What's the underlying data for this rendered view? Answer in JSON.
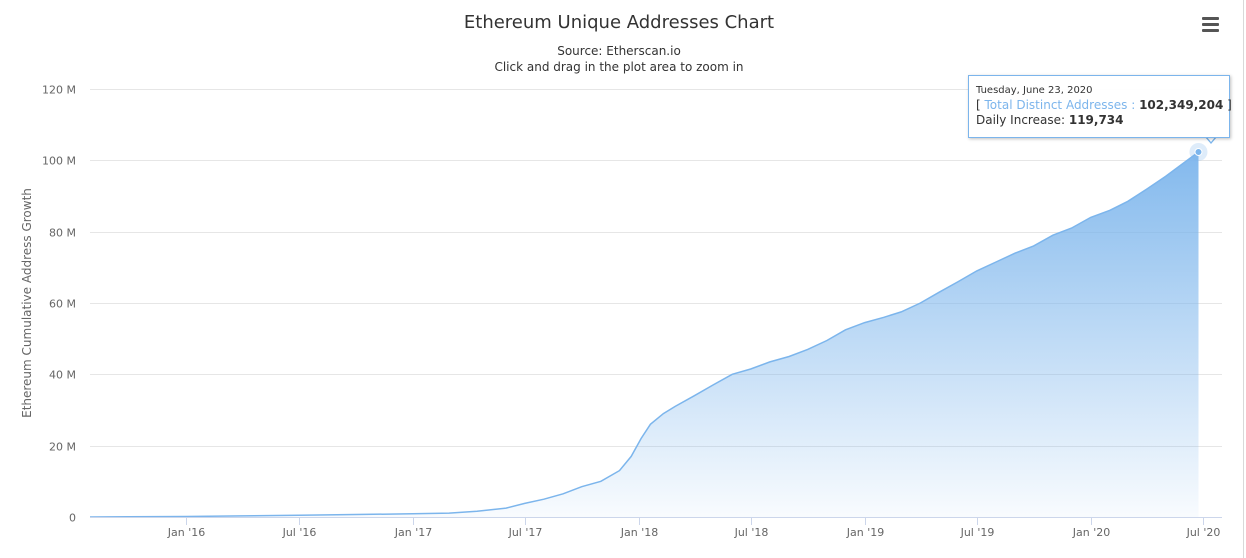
{
  "chart_data": {
    "type": "area",
    "title": "Ethereum Unique Addresses Chart",
    "subtitle": [
      "Source: Etherscan.io",
      "Click and drag in the plot area to zoom in"
    ],
    "xlabel": "",
    "ylabel": "Ethereum Cumulative Address Growth",
    "ylim": [
      0,
      120000000
    ],
    "xlim": [
      "2015-07-30",
      "2020-07-31"
    ],
    "y_ticks": [
      {
        "value": 0,
        "label": "0"
      },
      {
        "value": 20000000,
        "label": "20 M"
      },
      {
        "value": 40000000,
        "label": "40 M"
      },
      {
        "value": 60000000,
        "label": "60 M"
      },
      {
        "value": 80000000,
        "label": "80 M"
      },
      {
        "value": 100000000,
        "label": "100 M"
      },
      {
        "value": 120000000,
        "label": "120 M"
      }
    ],
    "x_ticks": [
      {
        "date": "2016-01-01",
        "label": "Jan '16"
      },
      {
        "date": "2016-07-01",
        "label": "Jul '16"
      },
      {
        "date": "2017-01-01",
        "label": "Jan '17"
      },
      {
        "date": "2017-07-01",
        "label": "Jul '17"
      },
      {
        "date": "2018-01-01",
        "label": "Jan '18"
      },
      {
        "date": "2018-07-01",
        "label": "Jul '18"
      },
      {
        "date": "2019-01-01",
        "label": "Jan '19"
      },
      {
        "date": "2019-07-01",
        "label": "Jul '19"
      },
      {
        "date": "2020-01-01",
        "label": "Jan '20"
      },
      {
        "date": "2020-07-01",
        "label": "Jul '20"
      }
    ],
    "grid": true,
    "legend": "none",
    "colors": {
      "line": "#7cb5ec",
      "fill_top": "#7cb5ec",
      "fill_bottom": "#ffffff",
      "grid": "#e6e6e6"
    },
    "series": [
      {
        "name": "Total Distinct Addresses",
        "points": [
          [
            "2015-07-30",
            0
          ],
          [
            "2015-10-01",
            50000
          ],
          [
            "2016-01-01",
            150000
          ],
          [
            "2016-04-01",
            300000
          ],
          [
            "2016-07-01",
            500000
          ],
          [
            "2016-10-01",
            700000
          ],
          [
            "2017-01-01",
            900000
          ],
          [
            "2017-03-01",
            1100000
          ],
          [
            "2017-04-15",
            1600000
          ],
          [
            "2017-06-01",
            2500000
          ],
          [
            "2017-07-01",
            3800000
          ],
          [
            "2017-08-01",
            5000000
          ],
          [
            "2017-09-01",
            6500000
          ],
          [
            "2017-10-01",
            8500000
          ],
          [
            "2017-11-01",
            10000000
          ],
          [
            "2017-12-01",
            13000000
          ],
          [
            "2017-12-20",
            17000000
          ],
          [
            "2018-01-05",
            22000000
          ],
          [
            "2018-01-20",
            26000000
          ],
          [
            "2018-02-10",
            29000000
          ],
          [
            "2018-03-01",
            31000000
          ],
          [
            "2018-04-01",
            34000000
          ],
          [
            "2018-05-01",
            37000000
          ],
          [
            "2018-06-01",
            40000000
          ],
          [
            "2018-07-01",
            41500000
          ],
          [
            "2018-08-01",
            43500000
          ],
          [
            "2018-09-01",
            45000000
          ],
          [
            "2018-10-01",
            47000000
          ],
          [
            "2018-11-01",
            49500000
          ],
          [
            "2018-12-01",
            52500000
          ],
          [
            "2019-01-01",
            54500000
          ],
          [
            "2019-02-01",
            56000000
          ],
          [
            "2019-03-01",
            57500000
          ],
          [
            "2019-04-01",
            60000000
          ],
          [
            "2019-05-01",
            63000000
          ],
          [
            "2019-06-01",
            66000000
          ],
          [
            "2019-07-01",
            69000000
          ],
          [
            "2019-08-01",
            71500000
          ],
          [
            "2019-09-01",
            74000000
          ],
          [
            "2019-10-01",
            76000000
          ],
          [
            "2019-11-01",
            79000000
          ],
          [
            "2019-12-01",
            81000000
          ],
          [
            "2020-01-01",
            84000000
          ],
          [
            "2020-02-01",
            86000000
          ],
          [
            "2020-03-01",
            88500000
          ],
          [
            "2020-04-01",
            92000000
          ],
          [
            "2020-05-01",
            95500000
          ],
          [
            "2020-06-01",
            99500000
          ],
          [
            "2020-06-23",
            102349204
          ]
        ]
      }
    ],
    "tooltip": {
      "date": "Tuesday, June 23, 2020",
      "bracket_open": "[",
      "series_name": "Total Distinct Addresses",
      "separator": ":",
      "value": "102,349,204",
      "bracket_close": "]",
      "increase_label": "Daily Increase:",
      "increase_value": "119,734",
      "point": [
        "2020-06-23",
        102349204
      ]
    }
  },
  "ui": {
    "menu_icon": "hamburger-menu-icon"
  }
}
